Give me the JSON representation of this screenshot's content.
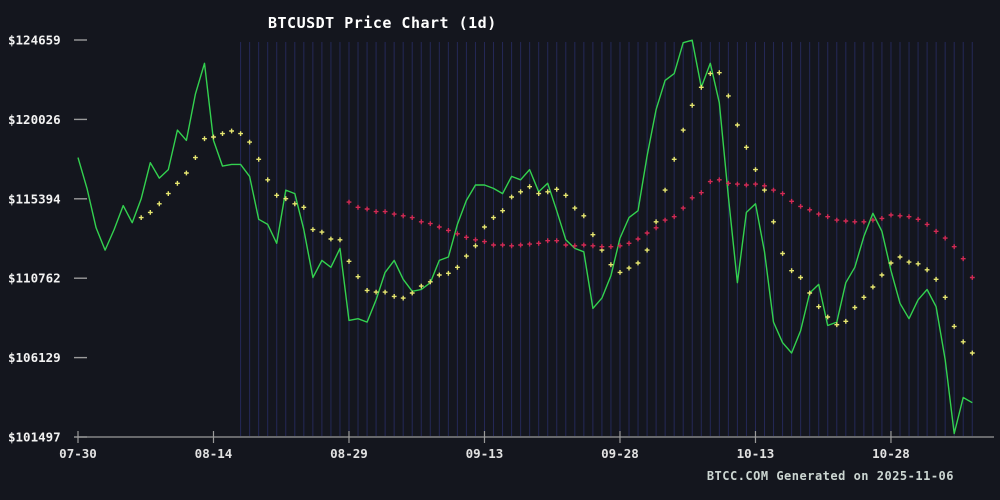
{
  "header": {
    "title": "BTCUSDT Price Chart (1d)"
  },
  "footer": {
    "text": "BTCC.COM Generated on 2025-11-06"
  },
  "y_axis": {
    "tick_labels": [
      "$124659",
      "$120026",
      "$115394",
      "$110762",
      "$106129",
      "$101497"
    ],
    "tick_values": [
      124659,
      120026,
      115394,
      110762,
      106129,
      101497
    ]
  },
  "x_axis": {
    "tick_labels": [
      "07-30",
      "08-14",
      "08-29",
      "09-13",
      "09-28",
      "10-13",
      "10-28"
    ],
    "tick_day_indices": [
      0,
      15,
      30,
      45,
      60,
      75,
      90
    ]
  },
  "chart_data": {
    "type": "line",
    "title": "BTCUSDT Price Chart (1d)",
    "x_start_date": "07-30",
    "x_end_date": "11-06",
    "x_unit": "1 day",
    "num_points": 100,
    "ylim": [
      101497,
      124659
    ],
    "grid": {
      "vertical_day_lines_from": 18,
      "vertical_day_lines_to": 99,
      "color": "#262b5e"
    },
    "series": [
      {
        "name": "price-line",
        "display": "line",
        "color": "#33d14f",
        "values": [
          117800,
          116000,
          113700,
          112400,
          113600,
          115000,
          114000,
          115400,
          117500,
          116600,
          117100,
          119400,
          118800,
          121500,
          123300,
          118800,
          117300,
          117400,
          117400,
          116700,
          114200,
          113900,
          112800,
          115900,
          115700,
          113600,
          110800,
          111800,
          111400,
          112500,
          108300,
          108400,
          108200,
          109500,
          111100,
          111800,
          110700,
          110000,
          110100,
          110500,
          111800,
          112000,
          113900,
          115300,
          116200,
          116200,
          116000,
          115700,
          116700,
          116500,
          117100,
          115800,
          116300,
          114700,
          113000,
          112500,
          112300,
          109000,
          109600,
          110900,
          113100,
          114300,
          114700,
          117900,
          120600,
          122300,
          122700,
          124500,
          124650,
          121900,
          123300,
          121000,
          115500,
          110500,
          114600,
          115100,
          112300,
          108200,
          107000,
          106400,
          107700,
          109900,
          110400,
          108000,
          108200,
          110500,
          111400,
          113200,
          114550,
          113500,
          111200,
          109300,
          108400,
          109500,
          110100,
          109100,
          106000,
          101700,
          103800,
          103500
        ]
      },
      {
        "name": "yellow-plus-series",
        "display": "plus-markers",
        "color": "#e6e670",
        "values": [
          null,
          null,
          null,
          null,
          null,
          null,
          null,
          114300,
          114600,
          115100,
          115700,
          116300,
          116900,
          117800,
          118900,
          119000,
          119200,
          119350,
          119200,
          118700,
          117700,
          116500,
          115600,
          115400,
          115100,
          114900,
          113600,
          113450,
          113050,
          113000,
          111750,
          110850,
          110050,
          109950,
          109950,
          109700,
          109600,
          109900,
          110300,
          110550,
          110950,
          111050,
          111400,
          112050,
          112650,
          113750,
          114300,
          114700,
          115500,
          115800,
          116100,
          115700,
          115800,
          115950,
          115600,
          114850,
          114400,
          113300,
          112400,
          111550,
          111100,
          111350,
          111650,
          112400,
          114050,
          115900,
          117700,
          119400,
          120850,
          121900,
          122700,
          122750,
          121400,
          119700,
          118400,
          117100,
          115900,
          114050,
          112200,
          111200,
          110800,
          109900,
          109100,
          108500,
          108050,
          108250,
          109050,
          109650,
          110250,
          110950,
          111650,
          112000,
          111700,
          111600,
          111250,
          110700,
          109650,
          107950,
          107050,
          106400
        ]
      },
      {
        "name": "red-plus-series",
        "display": "plus-markers",
        "color": "#d12a55",
        "values": [
          null,
          null,
          null,
          null,
          null,
          null,
          null,
          null,
          null,
          null,
          null,
          null,
          null,
          null,
          null,
          null,
          null,
          null,
          null,
          null,
          null,
          null,
          null,
          null,
          null,
          null,
          null,
          null,
          null,
          null,
          115200,
          114900,
          114800,
          114650,
          114650,
          114500,
          114400,
          114300,
          114050,
          113950,
          113750,
          113550,
          113350,
          113150,
          113000,
          112900,
          112700,
          112700,
          112650,
          112700,
          112750,
          112800,
          112950,
          112950,
          112700,
          112650,
          112700,
          112650,
          112600,
          112600,
          112650,
          112800,
          113050,
          113400,
          113700,
          114150,
          114350,
          114850,
          115450,
          115750,
          116400,
          116500,
          116300,
          116250,
          116200,
          116250,
          116150,
          115900,
          115700,
          115250,
          114950,
          114750,
          114500,
          114350,
          114150,
          114100,
          114050,
          114050,
          114150,
          114250,
          114450,
          114400,
          114350,
          114200,
          113900,
          113500,
          113100,
          112600,
          111900,
          110800
        ]
      }
    ]
  },
  "colors": {
    "background": "#14161e",
    "axis": "#9b9b9b",
    "x_tick_label": "#e2e2e2",
    "y_tick_label": "#f2f2f2",
    "title": "#ffffff",
    "footer_text": "#ccd6d2",
    "grid_line": "#262b5e"
  }
}
